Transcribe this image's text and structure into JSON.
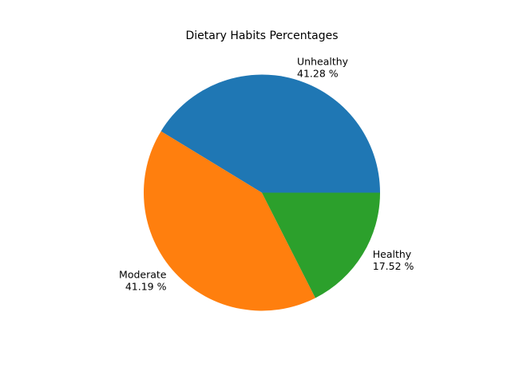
{
  "chart_data": {
    "type": "pie",
    "title": "Dietary Habits Percentages",
    "start_angle_deg": 0,
    "direction": "counterclockwise",
    "slices": [
      {
        "label": "Unhealthy",
        "value": 41.28,
        "value_label": "41.28 %",
        "color": "#1f77b4"
      },
      {
        "label": "Moderate",
        "value": 41.19,
        "value_label": "41.19 %",
        "color": "#ff7f0e"
      },
      {
        "label": "Healthy",
        "value": 17.52,
        "value_label": "17.52 %",
        "color": "#2ca02c"
      }
    ]
  }
}
